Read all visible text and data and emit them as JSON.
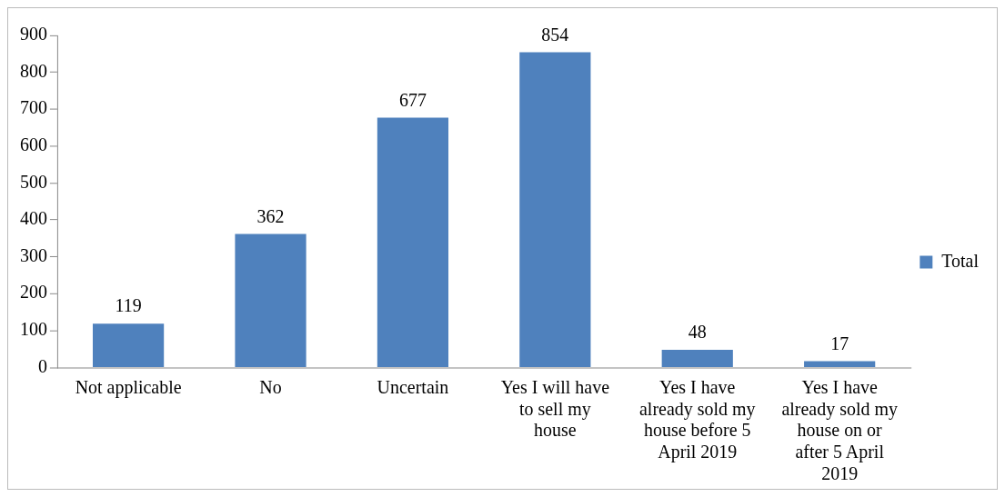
{
  "chart_data": {
    "type": "bar",
    "categories": [
      "Not applicable",
      "No",
      "Uncertain",
      "Yes I will have to sell my house",
      "Yes I have already sold my house before 5 April 2019",
      "Yes I have already sold my house on or after 5 April 2019"
    ],
    "series": [
      {
        "name": "Total",
        "color": "#4f81bd",
        "values": [
          119,
          362,
          677,
          854,
          48,
          17
        ]
      }
    ],
    "ylim": [
      0,
      900
    ],
    "yticks": [
      0,
      100,
      200,
      300,
      400,
      500,
      600,
      700,
      800,
      900
    ],
    "grid": false,
    "legend": "right",
    "data_labels": true
  }
}
